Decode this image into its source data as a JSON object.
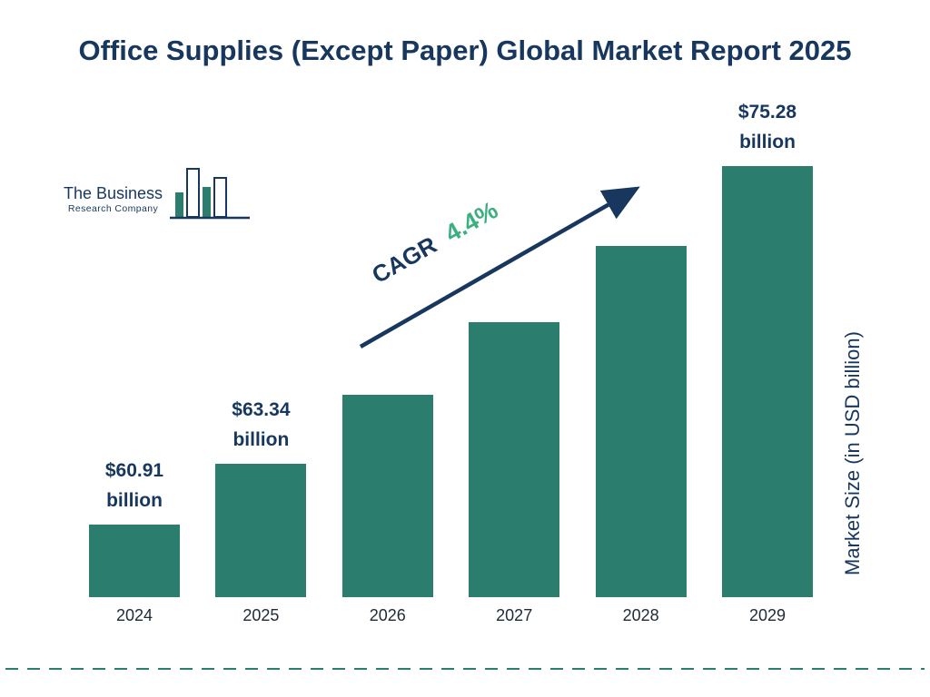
{
  "title": "Office Supplies (Except Paper) Global Market Report 2025",
  "logo": {
    "name_line1": "The Business",
    "name_line2": "Research Company"
  },
  "cagr": {
    "label": "CAGR",
    "value": "4.4%"
  },
  "chart_data": {
    "type": "bar",
    "title": "Office Supplies (Except Paper) Global Market Report 2025",
    "categories": [
      "2024",
      "2025",
      "2026",
      "2027",
      "2028",
      "2029"
    ],
    "values": [
      60.91,
      63.34,
      66.13,
      69.04,
      72.08,
      75.28
    ],
    "unit": "USD billion",
    "ylabel": "Market Size (in USD billion)",
    "xlabel": "",
    "cagr": "4.4%",
    "grid": false,
    "legend": "none",
    "bar_color": "#2b7d6d",
    "value_labels": [
      {
        "index": 0,
        "amount": "$60.91",
        "unit": "billion"
      },
      {
        "index": 1,
        "amount": "$63.34",
        "unit": "billion"
      },
      {
        "index": 5,
        "amount": "$75.28",
        "unit": "billion"
      }
    ]
  },
  "colors": {
    "navy": "#17375e",
    "teal": "#2b7d6d",
    "cagr_green": "#3bb07f"
  }
}
